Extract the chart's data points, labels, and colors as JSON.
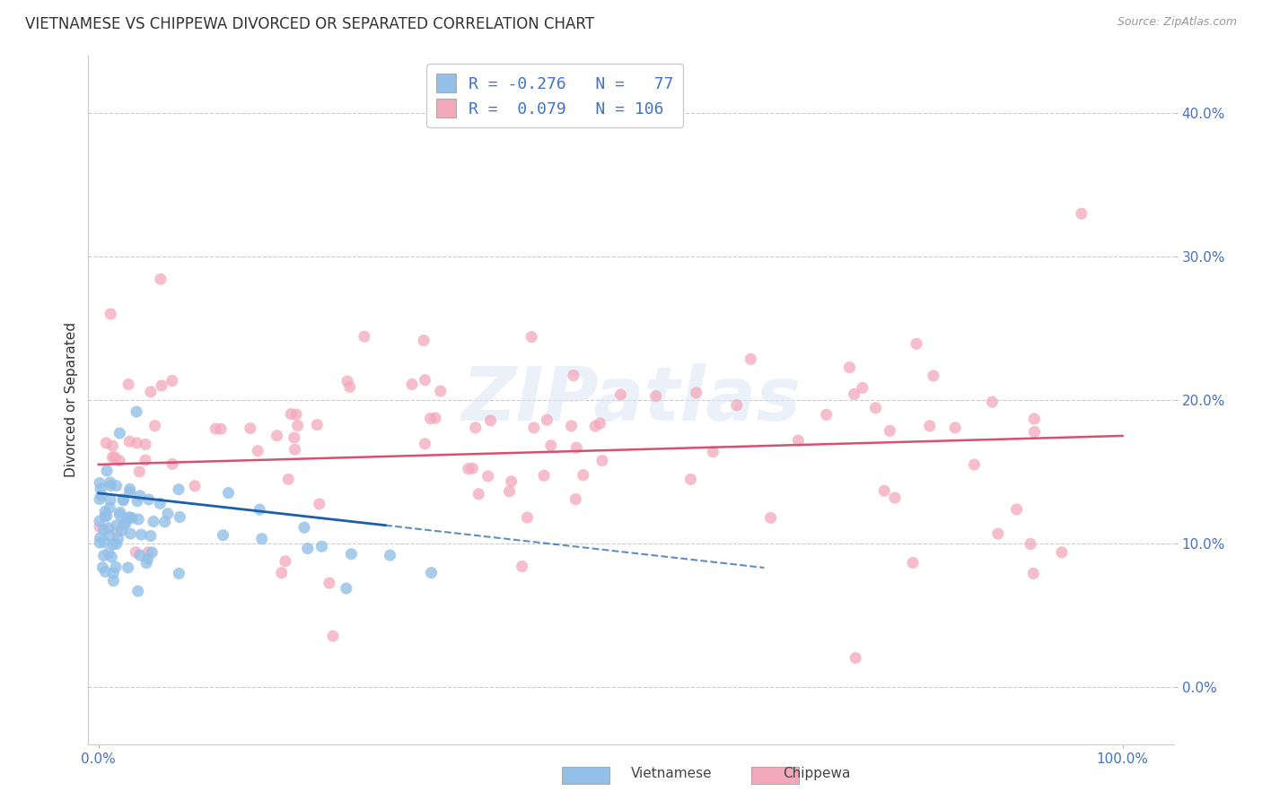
{
  "title": "VIETNAMESE VS CHIPPEWA DIVORCED OR SEPARATED CORRELATION CHART",
  "source": "Source: ZipAtlas.com",
  "ylabel": "Divorced or Separated",
  "y_tick_labels": [
    "0.0%",
    "10.0%",
    "20.0%",
    "30.0%",
    "40.0%"
  ],
  "y_tick_values": [
    0.0,
    0.1,
    0.2,
    0.3,
    0.4
  ],
  "x_tick_labels": [
    "0.0%",
    "100.0%"
  ],
  "x_tick_values": [
    0.0,
    1.0
  ],
  "xlim": [
    -0.01,
    1.05
  ],
  "ylim": [
    -0.04,
    0.44
  ],
  "viet_color": "#92c0e8",
  "chip_color": "#f4a8bb",
  "viet_line_color": "#1a5fa8",
  "chip_line_color": "#d94f70",
  "legend_label1": "Vietnamese",
  "legend_label2": "Chippewa",
  "background_color": "#ffffff",
  "grid_color": "#cccccc",
  "axis_label_color": "#4472c4",
  "title_fontsize": 12,
  "label_fontsize": 11,
  "tick_fontsize": 11,
  "watermark": "ZIPatlas",
  "legend_text1": "R = -0.276   N =   77",
  "legend_text2": "R =  0.079   N = 106"
}
